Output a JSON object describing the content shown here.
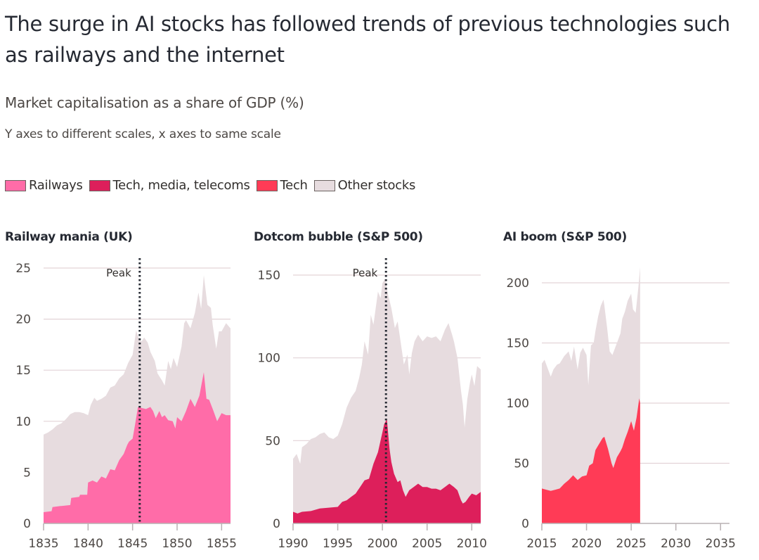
{
  "header": {
    "title": "The surge in AI stocks has followed trends of previous technologies such as railways and the internet",
    "subtitle": "Market capitalisation as a share of GDP (%)",
    "note": "Y axes to different scales, x axes to same scale"
  },
  "legend": [
    {
      "label": "Railways",
      "color": "#ff6ca8"
    },
    {
      "label": "Tech, media, telecoms",
      "color": "#dd1f5b"
    },
    {
      "label": "Tech",
      "color": "#ff3b56"
    },
    {
      "label": "Other stocks",
      "color": "#e7dcdf"
    }
  ],
  "colors": {
    "other": "#e7dcdf",
    "grid": "#e3d3d7",
    "axis": "#b9b1b3",
    "peak_line": "#262a33"
  },
  "chart_data": [
    {
      "type": "area",
      "title": "Railway mania (UK)",
      "xlabel": "",
      "ylabel": "Market capitalisation as a share of GDP (%)",
      "xlim": [
        1835,
        1856
      ],
      "ylim": [
        0,
        25
      ],
      "xticks": [
        1835,
        1840,
        1845,
        1850,
        1855
      ],
      "yticks": [
        0,
        5,
        10,
        15,
        20,
        25
      ],
      "grid": true,
      "annotation": {
        "label": "Peak",
        "x": 1845.8
      },
      "series": [
        {
          "name": "Railways",
          "color": "#ff6ca8",
          "x": [
            1835,
            1835.9,
            1836,
            1836.9,
            1837,
            1838,
            1838.1,
            1839,
            1839.1,
            1839.9,
            1840,
            1840.5,
            1841,
            1841.5,
            1842,
            1842.5,
            1843,
            1843.4,
            1843.5,
            1844,
            1844.4,
            1844.6,
            1845,
            1845.3,
            1845.6,
            1846,
            1846.5,
            1847,
            1847.3,
            1847.6,
            1848,
            1848.3,
            1848.6,
            1849,
            1849.5,
            1849.8,
            1850,
            1850.5,
            1851,
            1851.5,
            1852,
            1852.5,
            1853,
            1853.3,
            1853.6,
            1854,
            1854.5,
            1855,
            1855.5,
            1856
          ],
          "values": [
            1.1,
            1.2,
            1.6,
            1.7,
            1.7,
            1.8,
            2.5,
            2.6,
            2.8,
            2.8,
            4.0,
            4.2,
            4.0,
            4.6,
            4.4,
            5.3,
            5.2,
            6.0,
            6.2,
            6.8,
            7.7,
            8.0,
            8.3,
            9.8,
            11.4,
            11.3,
            11.2,
            11.4,
            11.0,
            10.3,
            11.0,
            10.4,
            10.6,
            10.1,
            10.0,
            9.3,
            10.4,
            10.0,
            11.0,
            12.2,
            11.4,
            12.5,
            14.8,
            12.2,
            12.1,
            11.2,
            10.0,
            10.8,
            10.6,
            10.6
          ]
        },
        {
          "name": "Other stocks",
          "color": "#e7dcdf",
          "stacked_total": true,
          "x": [
            1835,
            1835.5,
            1836,
            1836.5,
            1837,
            1837.5,
            1838,
            1838.5,
            1839,
            1839.5,
            1840,
            1840.3,
            1840.7,
            1841,
            1841.5,
            1842,
            1842.5,
            1843,
            1843.5,
            1844,
            1844.5,
            1845,
            1845.4,
            1845.7,
            1846,
            1846.3,
            1846.7,
            1847,
            1847.5,
            1847.8,
            1848,
            1848.3,
            1848.6,
            1849,
            1849.3,
            1849.6,
            1850,
            1850.5,
            1850.8,
            1851,
            1851.5,
            1852,
            1852.4,
            1852.7,
            1853,
            1853.4,
            1853.8,
            1854,
            1854.4,
            1854.7,
            1855,
            1855.5,
            1856
          ],
          "values": [
            8.7,
            8.9,
            9.2,
            9.6,
            9.8,
            10.2,
            10.7,
            10.9,
            10.9,
            10.8,
            10.6,
            11.6,
            12.3,
            12.0,
            12.2,
            12.5,
            13.3,
            13.5,
            14.2,
            14.6,
            15.7,
            16.5,
            18.9,
            18.1,
            17.8,
            18.2,
            17.7,
            16.8,
            15.9,
            14.7,
            14.4,
            14.0,
            13.5,
            15.9,
            15.1,
            16.2,
            15.3,
            17.3,
            19.6,
            19.9,
            19.1,
            20.6,
            22.6,
            21.0,
            24.3,
            21.4,
            21.1,
            19.4,
            17.1,
            18.8,
            18.8,
            19.6,
            19.1
          ]
        }
      ]
    },
    {
      "type": "area",
      "title": "Dotcom bubble (S&P 500)",
      "xlabel": "",
      "ylabel": "Market capitalisation as a share of GDP (%)",
      "xlim": [
        1990,
        2011
      ],
      "ylim": [
        0,
        150
      ],
      "xticks": [
        1990,
        1995,
        2000,
        2005,
        2010
      ],
      "yticks": [
        0,
        50,
        100,
        150
      ],
      "grid": true,
      "annotation": {
        "label": "Peak",
        "x": 2000.4
      },
      "series": [
        {
          "name": "Tech, media, telecoms",
          "color": "#dd1f5b",
          "x": [
            1990,
            1990.5,
            1991,
            1992,
            1993,
            1994,
            1995,
            1995.5,
            1996,
            1996.5,
            1997,
            1997.5,
            1998,
            1998.5,
            1999,
            1999.5,
            2000,
            2000.2,
            2000.5,
            2000.8,
            2001,
            2001.3,
            2001.7,
            2002,
            2002.3,
            2002.6,
            2003,
            2003.5,
            2004,
            2004.5,
            2005,
            2005.5,
            2006,
            2006.5,
            2007,
            2007.5,
            2008,
            2008.4,
            2008.8,
            2009,
            2009.3,
            2009.7,
            2010,
            2010.5,
            2011
          ],
          "values": [
            7,
            6,
            7,
            7.5,
            9,
            9.5,
            10,
            13,
            14,
            16,
            18,
            22,
            26,
            27,
            36,
            43,
            55,
            60,
            63,
            45,
            37,
            30,
            25,
            26,
            20,
            16,
            20,
            22,
            24,
            22,
            22,
            21,
            21,
            20,
            22,
            24,
            22,
            20,
            14,
            12,
            13,
            16,
            18,
            17,
            19
          ]
        },
        {
          "name": "Other stocks",
          "color": "#e7dcdf",
          "stacked_total": true,
          "x": [
            1990,
            1990.4,
            1990.8,
            1991,
            1991.5,
            1992,
            1992.5,
            1993,
            1993.5,
            1994,
            1994.5,
            1995,
            1995.5,
            1996,
            1996.5,
            1997,
            1997.4,
            1997.7,
            1998,
            1998.4,
            1998.7,
            1999,
            1999.5,
            1999.8,
            2000,
            2000.3,
            2000.6,
            2001,
            2001.4,
            2001.7,
            2002,
            2002.4,
            2002.8,
            2003,
            2003.3,
            2003.6,
            2004,
            2004.5,
            2005,
            2005.5,
            2006,
            2006.5,
            2007,
            2007.4,
            2007.8,
            2008,
            2008.4,
            2008.8,
            2009,
            2009.2,
            2009.5,
            2009.8,
            2010,
            2010.3,
            2010.6,
            2011
          ],
          "values": [
            39,
            42,
            36,
            46,
            48,
            51,
            52,
            54,
            55,
            52,
            51,
            53,
            60,
            70,
            76,
            80,
            88,
            96,
            110,
            102,
            126,
            120,
            140,
            136,
            145,
            148,
            139,
            130,
            118,
            122,
            111,
            96,
            102,
            90,
            103,
            110,
            114,
            110,
            113,
            112,
            113,
            110,
            117,
            121,
            114,
            110,
            100,
            80,
            72,
            58,
            75,
            85,
            90,
            83,
            95,
            93
          ]
        }
      ]
    },
    {
      "type": "area",
      "title": "AI boom (S&P 500)",
      "xlabel": "",
      "ylabel": "Market capitalisation as a share of GDP (%)",
      "xlim": [
        2015,
        2036
      ],
      "ylim": [
        0,
        200
      ],
      "xticks": [
        2015,
        2020,
        2025,
        2030,
        2035
      ],
      "yticks": [
        0,
        50,
        100,
        150,
        200
      ],
      "grid": true,
      "series": [
        {
          "name": "Tech",
          "color": "#ff3b56",
          "x": [
            2015,
            2015.5,
            2016,
            2016.5,
            2017,
            2017.5,
            2018,
            2018.5,
            2019,
            2019.5,
            2020,
            2020.3,
            2020.7,
            2021,
            2021.4,
            2021.8,
            2022,
            2022.4,
            2022.8,
            2023,
            2023.4,
            2023.8,
            2024,
            2024.3,
            2024.6,
            2025,
            2025.3,
            2025.6,
            2025.9,
            2026
          ],
          "values": [
            29,
            28,
            27,
            28,
            29,
            33,
            36,
            40,
            36,
            39,
            40,
            48,
            50,
            61,
            66,
            71,
            72,
            62,
            50,
            46,
            55,
            60,
            63,
            70,
            76,
            85,
            77,
            88,
            104,
            100
          ]
        },
        {
          "name": "Other stocks",
          "color": "#e7dcdf",
          "stacked_total": true,
          "x": [
            2015,
            2015.3,
            2015.7,
            2016,
            2016.3,
            2016.7,
            2017,
            2017.5,
            2018,
            2018.3,
            2018.6,
            2019,
            2019.3,
            2019.6,
            2020,
            2020.2,
            2020.5,
            2020.8,
            2021,
            2021.3,
            2021.6,
            2021.9,
            2022,
            2022.3,
            2022.6,
            2022.9,
            2023.2,
            2023.5,
            2023.8,
            2024,
            2024.3,
            2024.6,
            2025,
            2025.2,
            2025.5,
            2025.8,
            2026
          ],
          "values": [
            133,
            136,
            128,
            122,
            128,
            132,
            133,
            139,
            143,
            135,
            147,
            128,
            142,
            146,
            140,
            115,
            148,
            150,
            160,
            172,
            181,
            186,
            181,
            163,
            143,
            140,
            146,
            152,
            158,
            170,
            176,
            185,
            191,
            178,
            175,
            196,
            213
          ]
        }
      ]
    }
  ]
}
